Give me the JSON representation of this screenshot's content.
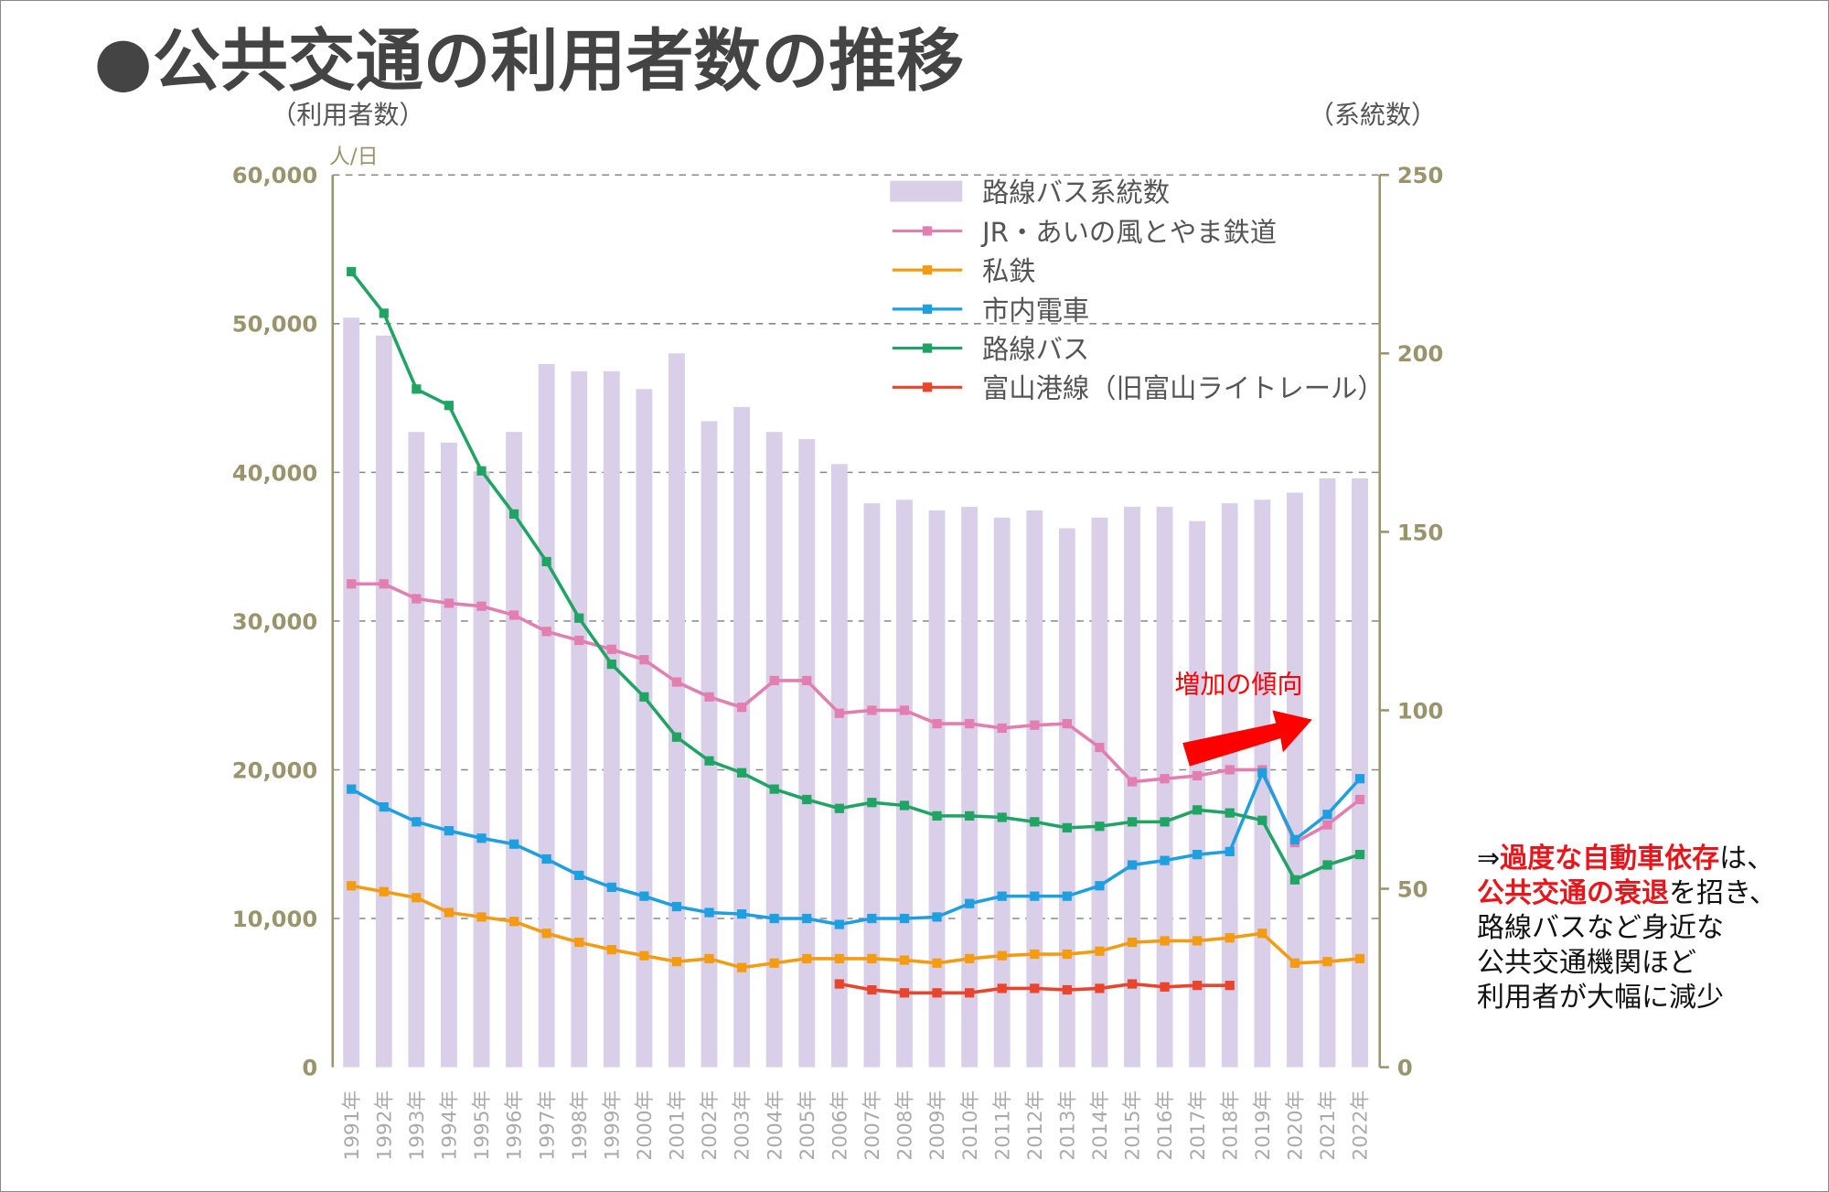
{
  "title": "●公共交通の利用者数の推移",
  "side_note": {
    "arrow": "⇒",
    "l1_red": "過度な自動車依存",
    "l1_rest": "は、",
    "l2_red": "公共交通の衰退",
    "l2_rest": "を招き、",
    "l3": "路線バスなど身近な",
    "l4": "公共交通機関ほど",
    "l5": "利用者が大幅に減少"
  },
  "annotation": {
    "text": "増加の傾向",
    "color": "#ff0000"
  },
  "chart_data": {
    "type": "bar+line",
    "title": "公共交通の利用者数の推移",
    "ylabel": "（利用者数）",
    "yunit": "人/日",
    "y2label": "（系統数）",
    "ylim": [
      0,
      60000
    ],
    "y2lim": [
      0,
      250
    ],
    "yticks": [
      "0",
      "10,000",
      "20,000",
      "30,000",
      "40,000",
      "50,000",
      "60,000"
    ],
    "y2ticks": [
      "0",
      "50",
      "100",
      "150",
      "200",
      "250"
    ],
    "grid": "dashed horizontal",
    "legend_position": "top-right",
    "categories": [
      "1991年",
      "1992年",
      "1993年",
      "1994年",
      "1995年",
      "1996年",
      "1997年",
      "1998年",
      "1999年",
      "2000年",
      "2001年",
      "2002年",
      "2003年",
      "2004年",
      "2005年",
      "2006年",
      "2007年",
      "2008年",
      "2009年",
      "2010年",
      "2011年",
      "2012年",
      "2013年",
      "2014年",
      "2015年",
      "2016年",
      "2017年",
      "2018年",
      "2019年",
      "2020年",
      "2021年",
      "2022年"
    ],
    "bars": {
      "name": "路線バス系統数",
      "axis": "right",
      "color": "#d9cfe8",
      "values": [
        210,
        205,
        178,
        175,
        167,
        178,
        197,
        195,
        195,
        190,
        200,
        181,
        185,
        178,
        176,
        169,
        158,
        159,
        156,
        157,
        154,
        156,
        151,
        154,
        157,
        157,
        153,
        158,
        159,
        161,
        165,
        165
      ]
    },
    "series": [
      {
        "name": "JR・あいの風とやま鉄道",
        "color": "#e27fb0",
        "values": [
          32500,
          32500,
          31500,
          31200,
          31000,
          30400,
          29300,
          28700,
          28100,
          27400,
          25900,
          24900,
          24200,
          26000,
          26000,
          23800,
          24000,
          24000,
          23100,
          23100,
          22800,
          23000,
          23100,
          21500,
          19200,
          19400,
          19600,
          20000,
          20000,
          15100,
          16300,
          18000
        ]
      },
      {
        "name": "私鉄",
        "color": "#f39c12",
        "values": [
          12200,
          11800,
          11400,
          10400,
          10100,
          9800,
          9000,
          8400,
          7900,
          7500,
          7100,
          7300,
          6700,
          7000,
          7300,
          7300,
          7300,
          7200,
          7000,
          7300,
          7500,
          7600,
          7600,
          7800,
          8400,
          8500,
          8500,
          8700,
          9000,
          7000,
          7100,
          7300
        ]
      },
      {
        "name": "市内電車",
        "color": "#1ea0e0",
        "values": [
          18700,
          17500,
          16500,
          15900,
          15400,
          15000,
          14000,
          12900,
          12100,
          11500,
          10800,
          10400,
          10300,
          10000,
          10000,
          9600,
          10000,
          10000,
          10100,
          11000,
          11500,
          11500,
          11500,
          12200,
          13600,
          13900,
          14300,
          14500,
          19800,
          15300,
          17000,
          19400
        ]
      },
      {
        "name": "路線バス",
        "color": "#1fa463",
        "values": [
          53500,
          50700,
          45600,
          44500,
          40100,
          37200,
          34000,
          30200,
          27100,
          24900,
          22200,
          20600,
          19800,
          18700,
          18000,
          17400,
          17800,
          17600,
          16900,
          16900,
          16800,
          16500,
          16100,
          16200,
          16500,
          16500,
          17300,
          17100,
          16600,
          12600,
          13600,
          14300
        ]
      },
      {
        "name": "富山港線（旧富山ライトレール）",
        "color": "#e8452c",
        "values": [
          null,
          null,
          null,
          null,
          null,
          null,
          null,
          null,
          null,
          null,
          null,
          null,
          null,
          null,
          null,
          5600,
          5200,
          5000,
          5000,
          5000,
          5300,
          5300,
          5200,
          5300,
          5600,
          5400,
          5500,
          5500,
          null,
          null,
          null,
          null
        ]
      }
    ]
  }
}
